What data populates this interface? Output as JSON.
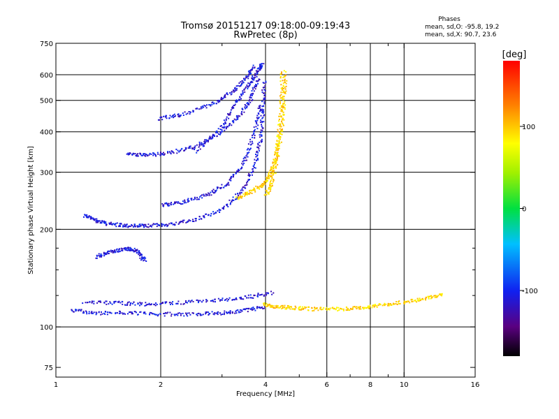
{
  "header": {
    "title": "Tromsø 20151217 09:18:00-09:19:43",
    "subtitle": "RwPretec (8p)"
  },
  "phase_info": {
    "title": "Phases",
    "o_mode": "mean, sd,O: -95.8, 19.2",
    "x_mode": "mean, sd,X:  90.7, 23.6"
  },
  "chart_data": {
    "type": "scatter",
    "xlabel": "Frequency [MHz]",
    "ylabel": "Stationary phase Virtual Height [km]",
    "xscale": "log",
    "yscale": "log",
    "xlim": [
      1,
      16
    ],
    "ylim": [
      70,
      750
    ],
    "x_ticks": [
      1,
      2,
      4,
      6,
      8,
      10,
      16
    ],
    "x_tick_labels": [
      "1",
      "2",
      "4",
      "6",
      "8",
      "10",
      "16"
    ],
    "x_minor_ticks": [
      3,
      5,
      7,
      9
    ],
    "y_ticks": [
      75,
      100,
      200,
      300,
      400,
      500,
      600,
      750
    ],
    "y_tick_labels": [
      "75",
      "100",
      "200",
      "300",
      "400",
      "500",
      "600",
      "750"
    ],
    "y_minor_ticks": [
      125,
      150,
      175
    ],
    "vertical_grid_at": [
      2,
      4,
      6,
      8,
      10
    ],
    "horizontal_grid_at": [
      100,
      200,
      300,
      400,
      500,
      600
    ],
    "colorbar": {
      "label": "[deg]",
      "range": [
        -180,
        180
      ],
      "ticks": [
        100,
        0,
        -100
      ],
      "tick_labels": [
        "100",
        "0",
        "-100"
      ]
    },
    "series": [
      {
        "mode": "O",
        "phase_deg": -110,
        "traces": [
          {
            "x": [
              1.2,
              1.3,
              1.4,
              1.6,
              1.8,
              2.1,
              2.5,
              3.0,
              3.4,
              3.7,
              3.85,
              3.92,
              3.95
            ],
            "y": [
              222,
              214,
              209,
              206,
              206,
              208,
              215,
              232,
              262,
              310,
              380,
              470,
              580
            ]
          },
          {
            "x": [
              1.6,
              1.8,
              2.1,
              2.5,
              2.9,
              3.3,
              3.6,
              3.8
            ],
            "y": [
              345,
              340,
              345,
              362,
              395,
              440,
              505,
              590
            ]
          },
          {
            "x": [
              2.0,
              2.3,
              2.7,
              3.1,
              3.45,
              3.7,
              3.85
            ],
            "y": [
              238,
              244,
              256,
              278,
              322,
              395,
              490
            ]
          },
          {
            "x": [
              1.95,
              2.3,
              2.8,
              3.2,
              3.5,
              3.7
            ],
            "y": [
              440,
              455,
              490,
              535,
              590,
              640
            ]
          },
          {
            "x": [
              2.5,
              3.0,
              3.3,
              3.6,
              3.8,
              3.9
            ],
            "y": [
              350,
              420,
              500,
              570,
              620,
              650
            ]
          },
          {
            "x": [
              1.1,
              1.3,
              1.6,
              2.0,
              2.5,
              3.0,
              3.5,
              4.0
            ],
            "y": [
              113,
              111,
              111,
              110,
              110,
              111,
              113,
              116
            ]
          },
          {
            "x": [
              1.2,
              1.5,
              1.8,
              2.2,
              2.8,
              3.5,
              4.2
            ],
            "y": [
              120,
              119,
              118,
              119,
              121,
              124,
              128
            ]
          },
          {
            "x": [
              1.3,
              1.45,
              1.6,
              1.7,
              1.8
            ],
            "y": [
              165,
              172,
              175,
              172,
              160
            ]
          }
        ]
      },
      {
        "mode": "X",
        "phase_deg": 95,
        "traces": [
          {
            "x": [
              3.3,
              3.6,
              3.9,
              4.1,
              4.25,
              4.35,
              4.42,
              4.45
            ],
            "y": [
              250,
              262,
              275,
              295,
              330,
              390,
              480,
              620
            ]
          },
          {
            "x": [
              4.0,
              4.15,
              4.3,
              4.42,
              4.5,
              4.55
            ],
            "y": [
              255,
              280,
              330,
              400,
              500,
              620
            ]
          },
          {
            "x": [
              3.9,
              4.3,
              4.8,
              5.5,
              6.5,
              7.5,
              8.5,
              10.0,
              11.5,
              13.0
            ],
            "y": [
              118,
              116,
              115,
              114,
              114,
              115,
              117,
              120,
              123,
              126
            ]
          }
        ]
      }
    ]
  }
}
